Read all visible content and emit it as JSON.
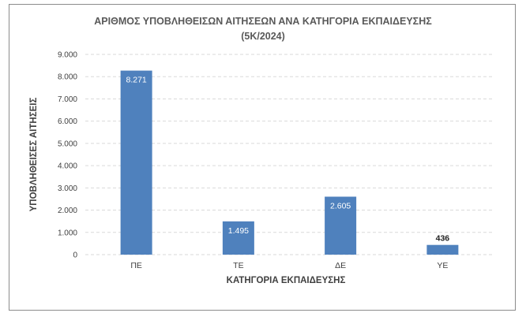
{
  "chart_data": {
    "type": "bar",
    "title": "ΑΡΙΘΜΟΣ ΥΠΟΒΛΗΘΕΙΣΩΝ ΑΙΤΗΣΕΩΝ ΑΝΑ ΚΑΤΗΓΟΡΙΑ ΕΚΠΑΙΔΕΥΣΗΣ",
    "subtitle": "(5Κ/2024)",
    "xlabel": "ΚΑΤΗΓΟΡΙΑ ΕΚΠΑΙΔΕΥΣΗΣ",
    "ylabel": "ΥΠΟΒΛΗΘΕΙΣΕΣ ΑΙΤΗΣΕΙΣ",
    "categories": [
      "ΠΕ",
      "ΤΕ",
      "ΔΕ",
      "ΥΕ"
    ],
    "values": [
      8271,
      1495,
      2605,
      436
    ],
    "value_labels": [
      "8.271",
      "1.495",
      "2.605",
      "436"
    ],
    "ylim": [
      0,
      9000
    ],
    "yticks": [
      0,
      1000,
      2000,
      3000,
      4000,
      5000,
      6000,
      7000,
      8000,
      9000
    ],
    "ytick_labels": [
      "0",
      "1.000",
      "2.000",
      "3.000",
      "4.000",
      "5.000",
      "6.000",
      "7.000",
      "8.000",
      "9.000"
    ],
    "grid": true,
    "bar_color": "#4f81bd"
  }
}
